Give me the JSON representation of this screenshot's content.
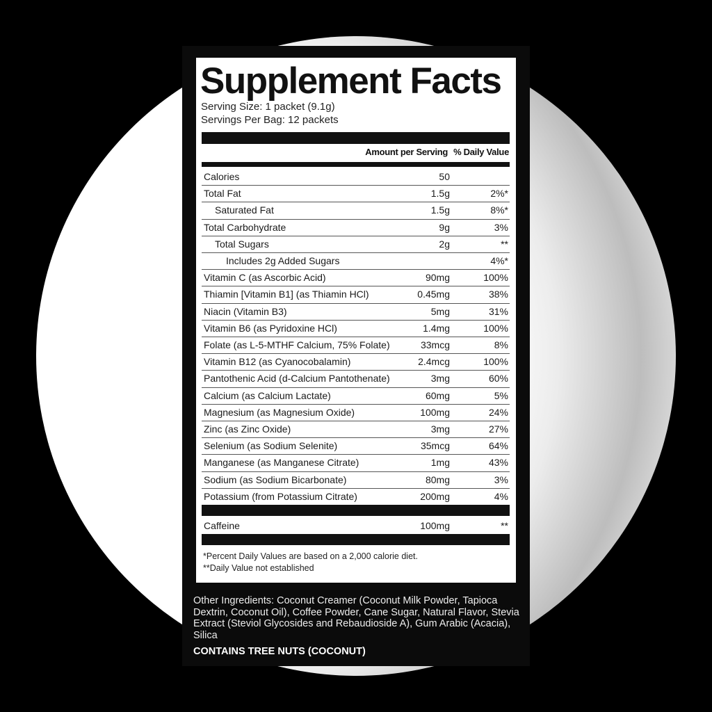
{
  "label": {
    "title": "Supplement Facts",
    "serving_size": "Serving Size: 1 packet (9.1g)",
    "servings_per": "Servings Per Bag: 12 packets",
    "col_amount": "Amount per Serving",
    "col_dv": "% Daily Value",
    "rows": [
      {
        "name": "Calories",
        "amount": "50",
        "dv": "",
        "indent": 0
      },
      {
        "name": "Total Fat",
        "amount": "1.5g",
        "dv": "2%*",
        "indent": 0
      },
      {
        "name": "Saturated Fat",
        "amount": "1.5g",
        "dv": "8%*",
        "indent": 1
      },
      {
        "name": "Total Carbohydrate",
        "amount": "9g",
        "dv": "3%",
        "indent": 0
      },
      {
        "name": "Total Sugars",
        "amount": "2g",
        "dv": "**",
        "indent": 1
      },
      {
        "name": "Includes 2g Added Sugars",
        "amount": "",
        "dv": "4%*",
        "indent": 2
      },
      {
        "name": "Vitamin C (as Ascorbic Acid)",
        "amount": "90mg",
        "dv": "100%",
        "indent": 0
      },
      {
        "name": "Thiamin [Vitamin B1] (as Thiamin HCl)",
        "amount": "0.45mg",
        "dv": "38%",
        "indent": 0
      },
      {
        "name": "Niacin (Vitamin B3)",
        "amount": "5mg",
        "dv": "31%",
        "indent": 0
      },
      {
        "name": "Vitamin B6 (as Pyridoxine HCl)",
        "amount": "1.4mg",
        "dv": "100%",
        "indent": 0
      },
      {
        "name": "Folate (as L-5-MTHF Calcium, 75% Folate)",
        "amount": "33mcg",
        "dv": "8%",
        "indent": 0
      },
      {
        "name": "Vitamin B12 (as Cyanocobalamin)",
        "amount": "2.4mcg",
        "dv": "100%",
        "indent": 0
      },
      {
        "name": "Pantothenic Acid (d-Calcium Pantothenate)",
        "amount": "3mg",
        "dv": "60%",
        "indent": 0
      },
      {
        "name": "Calcium (as Calcium Lactate)",
        "amount": "60mg",
        "dv": "5%",
        "indent": 0
      },
      {
        "name": "Magnesium (as Magnesium Oxide)",
        "amount": "100mg",
        "dv": "24%",
        "indent": 0
      },
      {
        "name": "Zinc (as Zinc Oxide)",
        "amount": "3mg",
        "dv": "27%",
        "indent": 0
      },
      {
        "name": "Selenium (as Sodium Selenite)",
        "amount": "35mcg",
        "dv": "64%",
        "indent": 0
      },
      {
        "name": "Manganese (as Manganese Citrate)",
        "amount": "1mg",
        "dv": "43%",
        "indent": 0
      },
      {
        "name": "Sodium (as Sodium Bicarbonate)",
        "amount": "80mg",
        "dv": "3%",
        "indent": 0
      },
      {
        "name": "Potassium (from Potassium Citrate)",
        "amount": "200mg",
        "dv": "4%",
        "indent": 0
      }
    ],
    "caffeine": {
      "name": "Caffeine",
      "amount": "100mg",
      "dv": "**"
    },
    "footnote1": "*Percent Daily Values are based on a 2,000 calorie diet.",
    "footnote2": "**Daily Value not established"
  },
  "other_ingredients": "Other Ingredients: Coconut Creamer (Coconut Milk Powder, Tapioca Dextrin, Coconut Oil), Coffee Powder, Cane Sugar, Natural Flavor, Stevia Extract (Steviol Glycosides and Rebaudioside A), Gum Arabic (Acacia), Silica",
  "allergen": "CONTAINS TREE NUTS (COCONUT)"
}
